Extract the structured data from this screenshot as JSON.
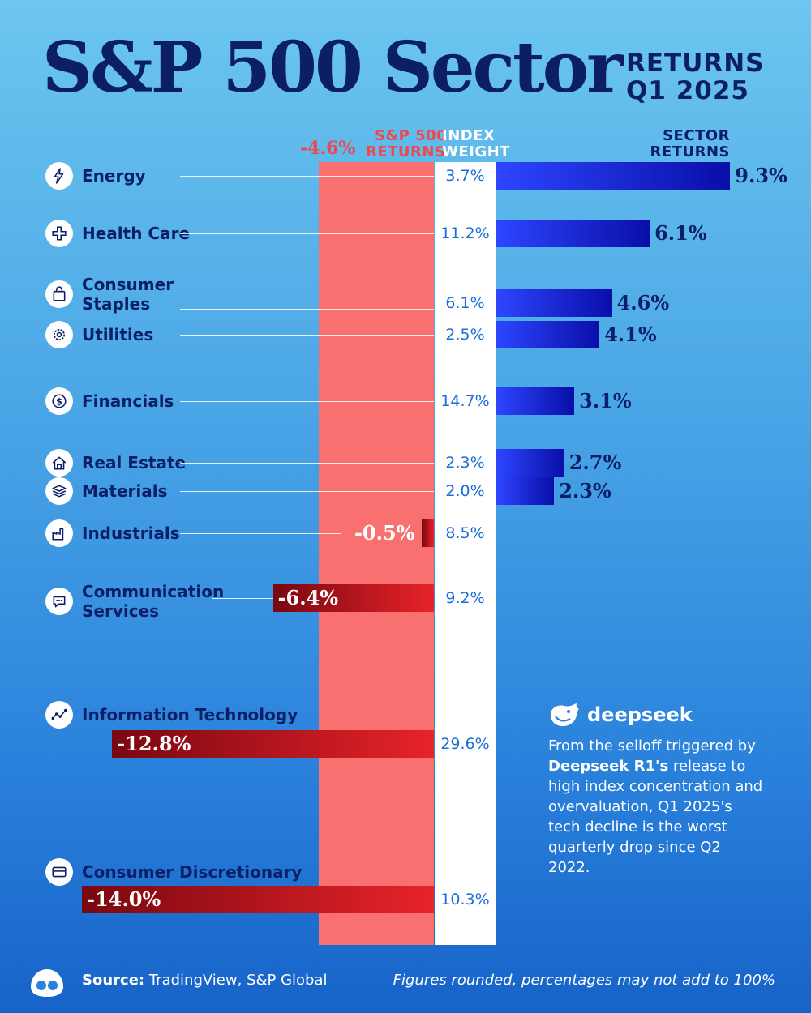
{
  "title": {
    "main": "S&P 500 Sector",
    "sub1": "RETURNS",
    "sub2": "Q1 2025"
  },
  "headers": {
    "sp500_line1": "S&P 500",
    "sp500_line2": "RETURNS",
    "weight_line1": "INDEX",
    "weight_line2": "WEIGHT",
    "sector_line1": "SECTOR",
    "sector_line2": "RETURNS",
    "sp500_value_label": "-4.6%"
  },
  "chart_data": {
    "type": "bar",
    "title": "S&P 500 Sector Returns Q1 2025",
    "sp500_return": -4.6,
    "categories": [
      "Energy",
      "Health Care",
      "Consumer Staples",
      "Utilities",
      "Financials",
      "Real Estate",
      "Materials",
      "Industrials",
      "Communication Services",
      "Information Technology",
      "Consumer Discretionary"
    ],
    "returns": [
      9.3,
      6.1,
      4.6,
      4.1,
      3.1,
      2.7,
      2.3,
      -0.5,
      -6.4,
      -12.8,
      -14.0
    ],
    "weights": [
      3.7,
      11.2,
      6.1,
      2.5,
      14.7,
      2.3,
      2.0,
      8.5,
      9.2,
      29.6,
      10.3
    ],
    "items": [
      {
        "line1": "Energy",
        "line2": "",
        "return": 9.3,
        "return_label": "9.3%",
        "weight_label": "3.7%",
        "icon": "lightning-icon",
        "color": "#1a22e0"
      },
      {
        "line1": "Health Care",
        "line2": "",
        "return": 6.1,
        "return_label": "6.1%",
        "weight_label": "11.2%",
        "icon": "plus-icon",
        "color": "#1a22e0"
      },
      {
        "line1": "Consumer",
        "line2": "Staples",
        "return": 4.6,
        "return_label": "4.6%",
        "weight_label": "6.1%",
        "icon": "bag-icon",
        "color": "#1a22e0"
      },
      {
        "line1": "Utilities",
        "line2": "",
        "return": 4.1,
        "return_label": "4.1%",
        "weight_label": "2.5%",
        "icon": "gear-icon",
        "color": "#1a22e0"
      },
      {
        "line1": "Financials",
        "line2": "",
        "return": 3.1,
        "return_label": "3.1%",
        "weight_label": "14.7%",
        "icon": "dollar-icon",
        "color": "#1a22e0"
      },
      {
        "line1": "Real Estate",
        "line2": "",
        "return": 2.7,
        "return_label": "2.7%",
        "weight_label": "2.3%",
        "icon": "house-icon",
        "color": "#1a22e0"
      },
      {
        "line1": "Materials",
        "line2": "",
        "return": 2.3,
        "return_label": "2.3%",
        "weight_label": "2.0%",
        "icon": "layers-icon",
        "color": "#1a22e0"
      },
      {
        "line1": "Industrials",
        "line2": "",
        "return": -0.5,
        "return_label": "-0.5%",
        "weight_label": "8.5%",
        "icon": "factory-icon",
        "color": "#d0161f"
      },
      {
        "line1": "Communication",
        "line2": "Services",
        "return": -6.4,
        "return_label": "-6.4%",
        "weight_label": "9.2%",
        "icon": "chat-icon",
        "color": "#d0161f"
      },
      {
        "line1": "Information Technology",
        "line2": "",
        "return": -12.8,
        "return_label": "-12.8%",
        "weight_label": "29.6%",
        "icon": "line-chart-icon",
        "color": "#d0161f"
      },
      {
        "line1": "Consumer Discretionary",
        "line2": "",
        "return": -14.0,
        "return_label": "-14.0%",
        "weight_label": "10.3%",
        "icon": "card-icon",
        "color": "#d0161f"
      }
    ]
  },
  "note": {
    "brand": "deepseek",
    "part1": "From the selloff triggered by ",
    "bold": "Deepseek R1's",
    "part2": " release to high index concentration and overvaluation, Q1 2025's tech decline is the worst quarterly drop since Q2 2022."
  },
  "footer": {
    "source_label": "Source:",
    "source_text": " TradingView, S&P Global",
    "footnote": "Figures rounded, percentages may not add to 100%"
  },
  "colors": {
    "title": "#0c1f66",
    "positive": "#1a22e0",
    "negative": "#d0161f",
    "sp_band": "#f8706f",
    "weight_text": "#1b6fd6"
  }
}
